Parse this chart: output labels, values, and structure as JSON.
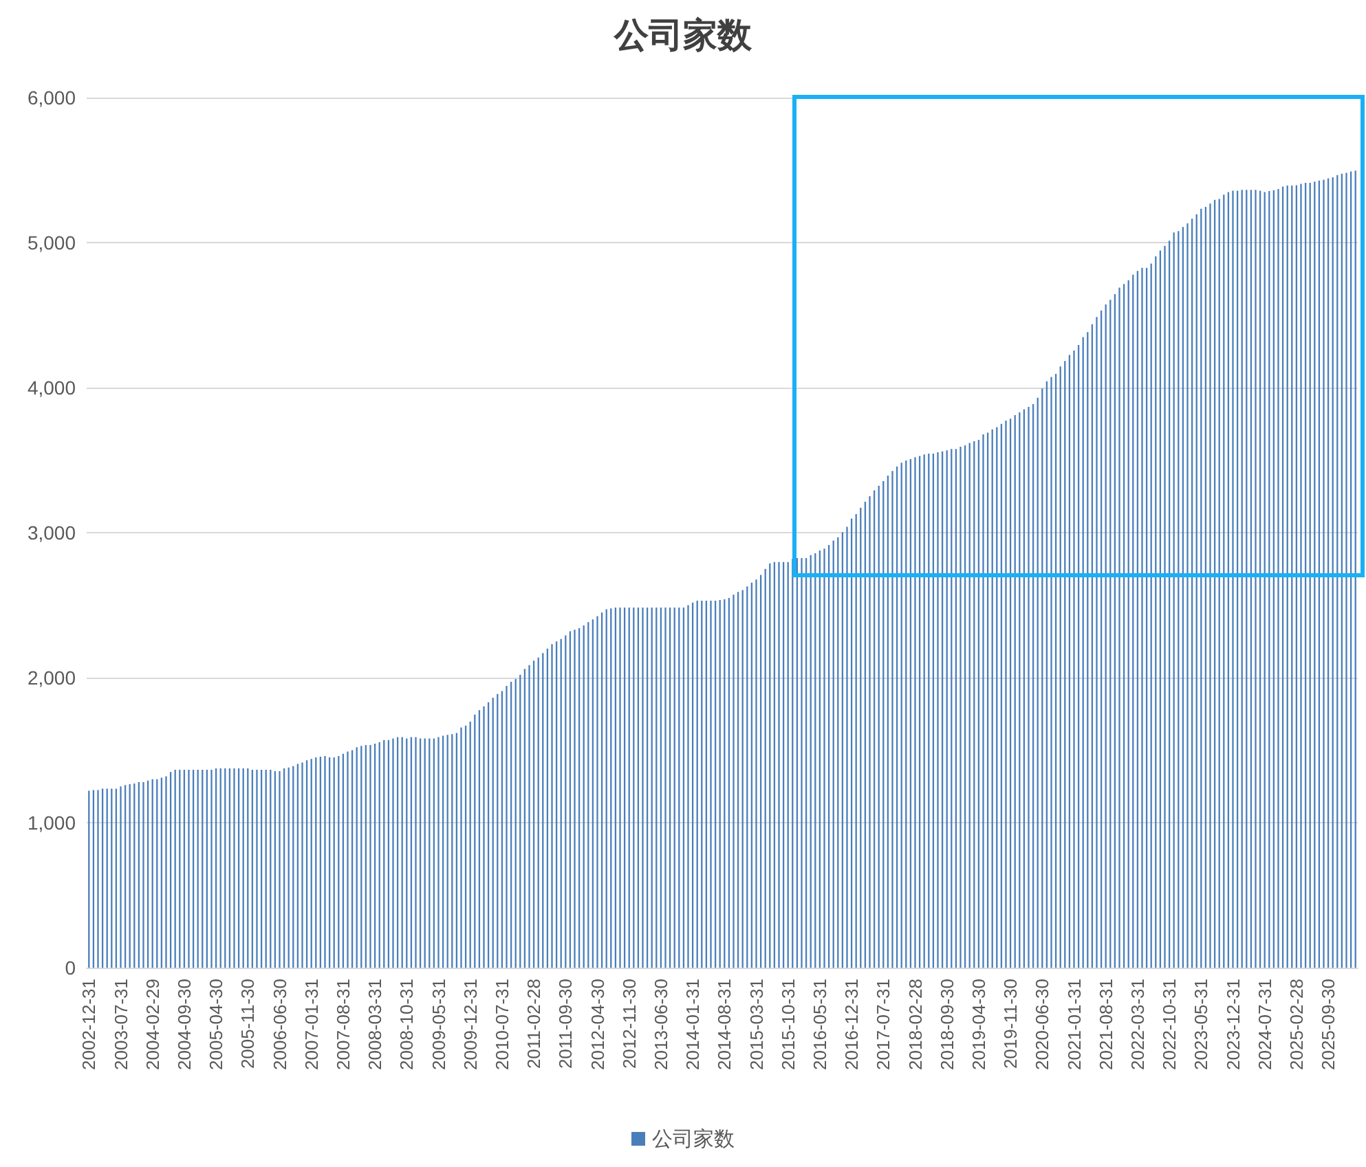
{
  "chart_data": {
    "type": "bar",
    "title": "公司家数",
    "categories": [
      "2002-12-31",
      null,
      null,
      null,
      null,
      null,
      null,
      "2003-07-31",
      null,
      null,
      null,
      null,
      null,
      null,
      "2004-02-29",
      null,
      null,
      null,
      null,
      null,
      null,
      "2004-09-30",
      null,
      null,
      null,
      null,
      null,
      null,
      "2005-04-30",
      null,
      null,
      null,
      null,
      null,
      null,
      "2005-11-30",
      null,
      null,
      null,
      null,
      null,
      null,
      "2006-06-30",
      null,
      null,
      null,
      null,
      null,
      null,
      "2007-01-31",
      null,
      null,
      null,
      null,
      null,
      null,
      "2007-08-31",
      null,
      null,
      null,
      null,
      null,
      null,
      "2008-03-31",
      null,
      null,
      null,
      null,
      null,
      null,
      "2008-10-31",
      null,
      null,
      null,
      null,
      null,
      null,
      "2009-05-31",
      null,
      null,
      null,
      null,
      null,
      null,
      "2009-12-31",
      null,
      null,
      null,
      null,
      null,
      null,
      "2010-07-31",
      null,
      null,
      null,
      null,
      null,
      null,
      "2011-02-28",
      null,
      null,
      null,
      null,
      null,
      null,
      "2011-09-30",
      null,
      null,
      null,
      null,
      null,
      null,
      "2012-04-30",
      null,
      null,
      null,
      null,
      null,
      null,
      "2012-11-30",
      null,
      null,
      null,
      null,
      null,
      null,
      "2013-06-30",
      null,
      null,
      null,
      null,
      null,
      null,
      "2014-01-31",
      null,
      null,
      null,
      null,
      null,
      null,
      "2014-08-31",
      null,
      null,
      null,
      null,
      null,
      null,
      "2015-03-31",
      null,
      null,
      null,
      null,
      null,
      null,
      "2015-10-31",
      null,
      null,
      null,
      null,
      null,
      null,
      "2016-05-31",
      null,
      null,
      null,
      null,
      null,
      null,
      "2016-12-31",
      null,
      null,
      null,
      null,
      null,
      null,
      "2017-07-31",
      null,
      null,
      null,
      null,
      null,
      null,
      "2018-02-28",
      null,
      null,
      null,
      null,
      null,
      null,
      "2018-09-30",
      null,
      null,
      null,
      null,
      null,
      null,
      "2019-04-30",
      null,
      null,
      null,
      null,
      null,
      null,
      "2019-11-30",
      null,
      null,
      null,
      null,
      null,
      null,
      "2020-06-30",
      null,
      null,
      null,
      null,
      null,
      null,
      "2021-01-31",
      null,
      null,
      null,
      null,
      null,
      null,
      "2021-08-31",
      null,
      null,
      null,
      null,
      null,
      null,
      "2022-03-31",
      null,
      null,
      null,
      null,
      null,
      null,
      "2022-10-31",
      null,
      null,
      null,
      null,
      null,
      null,
      "2023-05-31",
      null,
      null,
      null,
      null,
      null,
      null,
      "2023-12-31",
      null,
      null,
      null,
      null,
      null,
      null,
      "2024-07-31",
      null,
      null,
      null,
      null,
      null,
      null,
      "2025-02-28",
      null,
      null,
      null,
      null,
      null,
      null,
      "2025-09-30",
      null,
      null,
      null,
      null,
      null,
      null
    ],
    "series": [
      {
        "name": "公司家数",
        "color": "#4a7ebb",
        "values": [
          1220,
          1225,
          1225,
          1235,
          1235,
          1235,
          1235,
          1250,
          1260,
          1265,
          1270,
          1280,
          1280,
          1290,
          1300,
          1300,
          1310,
          1320,
          1350,
          1365,
          1365,
          1365,
          1365,
          1365,
          1365,
          1365,
          1365,
          1365,
          1375,
          1375,
          1375,
          1375,
          1375,
          1375,
          1375,
          1375,
          1365,
          1365,
          1365,
          1365,
          1365,
          1355,
          1355,
          1375,
          1380,
          1390,
          1405,
          1415,
          1430,
          1440,
          1450,
          1455,
          1460,
          1450,
          1450,
          1460,
          1475,
          1490,
          1500,
          1520,
          1530,
          1535,
          1535,
          1545,
          1555,
          1570,
          1570,
          1580,
          1590,
          1590,
          1580,
          1590,
          1590,
          1580,
          1580,
          1580,
          1580,
          1590,
          1600,
          1605,
          1610,
          1618,
          1656,
          1670,
          1697,
          1745,
          1776,
          1802,
          1830,
          1861,
          1887,
          1908,
          1943,
          1972,
          1991,
          2020,
          2060,
          2086,
          2117,
          2139,
          2170,
          2200,
          2231,
          2250,
          2266,
          2292,
          2320,
          2330,
          2341,
          2360,
          2383,
          2402,
          2424,
          2449,
          2471,
          2478,
          2484,
          2484,
          2484,
          2484,
          2484,
          2484,
          2484,
          2484,
          2484,
          2484,
          2484,
          2484,
          2484,
          2484,
          2484,
          2484,
          2500,
          2518,
          2531,
          2531,
          2531,
          2531,
          2531,
          2535,
          2540,
          2550,
          2572,
          2591,
          2604,
          2629,
          2655,
          2677,
          2709,
          2750,
          2788,
          2797,
          2797,
          2797,
          2797,
          2820,
          2825,
          2825,
          2825,
          2845,
          2858,
          2877,
          2890,
          2915,
          2946,
          2968,
          3003,
          3040,
          3097,
          3128,
          3172,
          3213,
          3251,
          3292,
          3324,
          3355,
          3393,
          3425,
          3456,
          3482,
          3498,
          3507,
          3520,
          3529,
          3539,
          3545,
          3545,
          3554,
          3561,
          3567,
          3577,
          3577,
          3593,
          3602,
          3618,
          3630,
          3640,
          3678,
          3690,
          3712,
          3728,
          3750,
          3772,
          3785,
          3810,
          3829,
          3851,
          3867,
          3886,
          3930,
          3994,
          4044,
          4073,
          4095,
          4146,
          4184,
          4225,
          4256,
          4294,
          4348,
          4383,
          4437,
          4487,
          4532,
          4573,
          4605,
          4645,
          4690,
          4715,
          4740,
          4778,
          4804,
          4826,
          4826,
          4855,
          4905,
          4946,
          4978,
          5013,
          5070,
          5079,
          5108,
          5133,
          5165,
          5196,
          5234,
          5247,
          5269,
          5295,
          5301,
          5330,
          5348,
          5358,
          5358,
          5364,
          5364,
          5364,
          5364,
          5358,
          5348,
          5355,
          5361,
          5370,
          5386,
          5393,
          5393,
          5396,
          5405,
          5412,
          5412,
          5421,
          5428,
          5434,
          5443,
          5450,
          5466,
          5475,
          5481,
          5491,
          5497
        ]
      }
    ],
    "ylim": [
      0,
      6000
    ],
    "yticks": [
      {
        "value": 0,
        "label": "0"
      },
      {
        "value": 1000,
        "label": "1,000"
      },
      {
        "value": 2000,
        "label": "2,000"
      },
      {
        "value": 3000,
        "label": "3,000"
      },
      {
        "value": 4000,
        "label": "4,000"
      },
      {
        "value": 5000,
        "label": "5,000"
      },
      {
        "value": 6000,
        "label": "6,000"
      }
    ],
    "grid": "y",
    "legend": "bottom"
  }
}
